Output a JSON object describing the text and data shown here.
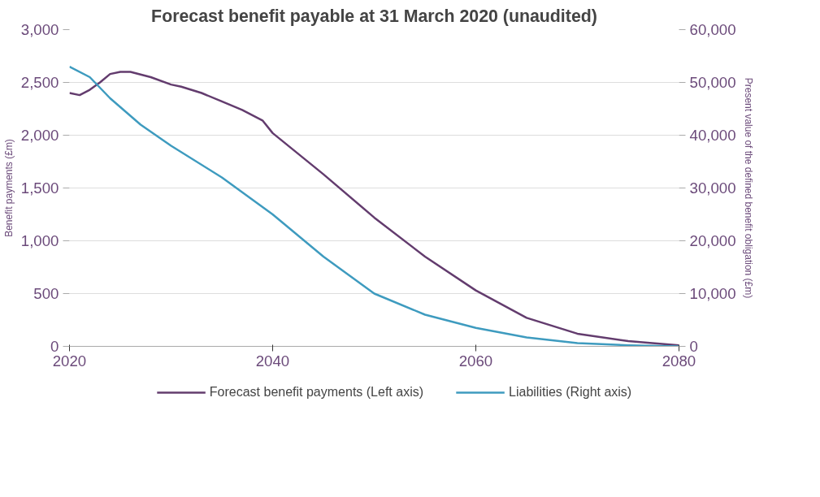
{
  "chart_data": {
    "type": "line",
    "title": "Forecast benefit payable at 31 March 2020 (unaudited)",
    "ylabel": "Benefit payments (£m)",
    "y2label": "Present value of the defined benefit obligation (£m)",
    "xlim": [
      2020,
      2080
    ],
    "xticks": [
      2020,
      2040,
      2060,
      2080
    ],
    "ylim": [
      0,
      3000
    ],
    "yticks": [
      {
        "value": 0,
        "label": "0"
      },
      {
        "value": 500,
        "label": "500"
      },
      {
        "value": 1000,
        "label": "1,000"
      },
      {
        "value": 1500,
        "label": "1,500"
      },
      {
        "value": 2000,
        "label": "2,000"
      },
      {
        "value": 2500,
        "label": "2,500"
      },
      {
        "value": 3000,
        "label": "3,000"
      }
    ],
    "y2lim": [
      0,
      60000
    ],
    "y2ticks": [
      {
        "value": 0,
        "label": "0"
      },
      {
        "value": 10000,
        "label": "10,000"
      },
      {
        "value": 20000,
        "label": "20,000"
      },
      {
        "value": 30000,
        "label": "30,000"
      },
      {
        "value": 40000,
        "label": "40,000"
      },
      {
        "value": 50000,
        "label": "50,000"
      },
      {
        "value": 60000,
        "label": "60,000"
      }
    ],
    "grid": "y",
    "legend": "bottom",
    "marker": "none",
    "line_style": "solid",
    "series": [
      {
        "name": "Forecast benefit payments (Left axis)",
        "color": "#633c6e",
        "x": [
          2020,
          2021,
          2022,
          2023,
          2024,
          2025,
          2026,
          2028,
          2030,
          2031,
          2033,
          2035,
          2037,
          2039,
          2040,
          2045,
          2050,
          2055,
          2060,
          2065,
          2070,
          2075,
          2080
        ],
        "values": [
          2400,
          2380,
          2430,
          2500,
          2580,
          2600,
          2600,
          2550,
          2480,
          2460,
          2400,
          2320,
          2240,
          2140,
          2020,
          1630,
          1220,
          850,
          530,
          270,
          120,
          50,
          10
        ]
      },
      {
        "name": "Liabilities (Right axis)",
        "color": "#3e9bbf",
        "axis": "y2",
        "x": [
          2020,
          2022,
          2024,
          2027,
          2030,
          2035,
          2040,
          2045,
          2050,
          2055,
          2060,
          2065,
          2070,
          2075,
          2080
        ],
        "values": [
          53000,
          51000,
          47000,
          42000,
          38000,
          32000,
          25000,
          17000,
          10000,
          6000,
          3500,
          1700,
          600,
          200,
          0
        ]
      }
    ]
  }
}
